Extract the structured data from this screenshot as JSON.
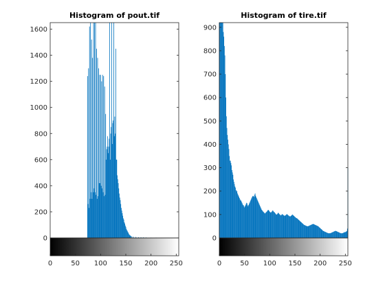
{
  "chart_data": [
    {
      "type": "bar",
      "title": "Histogram of pout.tif",
      "xlabel": "",
      "ylabel": "",
      "xlim": [
        0,
        255
      ],
      "ylim": [
        0,
        1650
      ],
      "xticks": [
        0,
        50,
        100,
        150,
        200,
        250
      ],
      "yticks": [
        0,
        200,
        400,
        600,
        800,
        1000,
        1200,
        1400,
        1600
      ],
      "bar_color": "#0072BD",
      "colorbar": "grayscale 0-255",
      "bins": [
        [
          74,
          1240
        ],
        [
          75,
          260
        ],
        [
          76,
          1300
        ],
        [
          77,
          230
        ],
        [
          78,
          1620
        ],
        [
          79,
          300
        ],
        [
          80,
          1650
        ],
        [
          81,
          350
        ],
        [
          82,
          1520
        ],
        [
          83,
          300
        ],
        [
          84,
          1380
        ],
        [
          85,
          350
        ],
        [
          86,
          1650
        ],
        [
          87,
          380
        ],
        [
          88,
          1650
        ],
        [
          89,
          350
        ],
        [
          90,
          1650
        ],
        [
          91,
          330
        ],
        [
          92,
          1450
        ],
        [
          93,
          300
        ],
        [
          94,
          1380
        ],
        [
          95,
          320
        ],
        [
          96,
          1300
        ],
        [
          97,
          420
        ],
        [
          98,
          1250
        ],
        [
          99,
          420
        ],
        [
          100,
          1250
        ],
        [
          101,
          400
        ],
        [
          102,
          1200
        ],
        [
          103,
          380
        ],
        [
          104,
          1250
        ],
        [
          105,
          350
        ],
        [
          106,
          1240
        ],
        [
          107,
          320
        ],
        [
          108,
          1160
        ],
        [
          109,
          330
        ],
        [
          110,
          950
        ],
        [
          111,
          600
        ],
        [
          112,
          680
        ],
        [
          113,
          700
        ],
        [
          114,
          780
        ],
        [
          115,
          650
        ],
        [
          116,
          700
        ],
        [
          117,
          760
        ],
        [
          118,
          1650
        ],
        [
          119,
          600
        ],
        [
          120,
          800
        ],
        [
          121,
          850
        ],
        [
          122,
          1650
        ],
        [
          123,
          720
        ],
        [
          124,
          880
        ],
        [
          125,
          900
        ],
        [
          126,
          1650
        ],
        [
          127,
          780
        ],
        [
          128,
          930
        ],
        [
          129,
          800
        ],
        [
          130,
          1450
        ],
        [
          131,
          600
        ],
        [
          132,
          600
        ],
        [
          133,
          480
        ],
        [
          134,
          450
        ],
        [
          135,
          420
        ],
        [
          136,
          380
        ],
        [
          137,
          340
        ],
        [
          138,
          310
        ],
        [
          139,
          290
        ],
        [
          140,
          260
        ],
        [
          141,
          230
        ],
        [
          142,
          210
        ],
        [
          143,
          190
        ],
        [
          144,
          170
        ],
        [
          145,
          150
        ],
        [
          146,
          140
        ],
        [
          147,
          120
        ],
        [
          148,
          110
        ],
        [
          149,
          95
        ],
        [
          150,
          85
        ],
        [
          151,
          70
        ],
        [
          152,
          60
        ],
        [
          153,
          55
        ],
        [
          154,
          45
        ],
        [
          155,
          40
        ],
        [
          156,
          30
        ],
        [
          157,
          25
        ],
        [
          158,
          20
        ],
        [
          159,
          18
        ],
        [
          160,
          15
        ],
        [
          162,
          12
        ],
        [
          165,
          10
        ],
        [
          170,
          8
        ],
        [
          175,
          6
        ],
        [
          180,
          5
        ],
        [
          185,
          5
        ],
        [
          190,
          4
        ],
        [
          200,
          3
        ],
        [
          210,
          3
        ],
        [
          220,
          2
        ],
        [
          230,
          2
        ],
        [
          240,
          2
        ]
      ]
    },
    {
      "type": "bar",
      "title": "Histogram of tire.tif",
      "xlabel": "",
      "ylabel": "",
      "xlim": [
        0,
        255
      ],
      "ylim": [
        0,
        920
      ],
      "xticks": [
        0,
        50,
        100,
        150,
        200,
        250
      ],
      "yticks": [
        0,
        100,
        200,
        300,
        400,
        500,
        600,
        700,
        800,
        900
      ],
      "bar_color": "#0072BD",
      "colorbar": "grayscale 0-255",
      "bins": [
        [
          0,
          920
        ],
        [
          1,
          920
        ],
        [
          2,
          920
        ],
        [
          3,
          920
        ],
        [
          4,
          920
        ],
        [
          5,
          920
        ],
        [
          6,
          920
        ],
        [
          7,
          920
        ],
        [
          8,
          880
        ],
        [
          9,
          860
        ],
        [
          10,
          820
        ],
        [
          11,
          780
        ],
        [
          12,
          700
        ],
        [
          13,
          600
        ],
        [
          14,
          520
        ],
        [
          15,
          470
        ],
        [
          16,
          440
        ],
        [
          17,
          420
        ],
        [
          18,
          400
        ],
        [
          19,
          380
        ],
        [
          20,
          350
        ],
        [
          21,
          330
        ],
        [
          22,
          330
        ],
        [
          23,
          320
        ],
        [
          24,
          310
        ],
        [
          25,
          290
        ],
        [
          26,
          280
        ],
        [
          27,
          270
        ],
        [
          28,
          250
        ],
        [
          29,
          240
        ],
        [
          30,
          230
        ],
        [
          31,
          220
        ],
        [
          32,
          215
        ],
        [
          33,
          205
        ],
        [
          34,
          200
        ],
        [
          35,
          200
        ],
        [
          36,
          190
        ],
        [
          37,
          185
        ],
        [
          38,
          180
        ],
        [
          39,
          175
        ],
        [
          40,
          170
        ],
        [
          41,
          165
        ],
        [
          42,
          160
        ],
        [
          43,
          160
        ],
        [
          44,
          155
        ],
        [
          45,
          150
        ],
        [
          46,
          145
        ],
        [
          47,
          140
        ],
        [
          48,
          140
        ],
        [
          49,
          135
        ],
        [
          50,
          130
        ],
        [
          51,
          135
        ],
        [
          52,
          140
        ],
        [
          53,
          145
        ],
        [
          54,
          150
        ],
        [
          55,
          148
        ],
        [
          56,
          140
        ],
        [
          57,
          135
        ],
        [
          58,
          140
        ],
        [
          59,
          145
        ],
        [
          60,
          150
        ],
        [
          61,
          155
        ],
        [
          62,
          160
        ],
        [
          63,
          165
        ],
        [
          64,
          170
        ],
        [
          65,
          175
        ],
        [
          66,
          178
        ],
        [
          67,
          180
        ],
        [
          68,
          178
        ],
        [
          69,
          175
        ],
        [
          70,
          185
        ],
        [
          71,
          190
        ],
        [
          72,
          180
        ],
        [
          73,
          175
        ],
        [
          74,
          170
        ],
        [
          75,
          165
        ],
        [
          76,
          160
        ],
        [
          77,
          155
        ],
        [
          78,
          150
        ],
        [
          79,
          145
        ],
        [
          80,
          140
        ],
        [
          81,
          135
        ],
        [
          82,
          130
        ],
        [
          83,
          125
        ],
        [
          84,
          120
        ],
        [
          85,
          118
        ],
        [
          86,
          115
        ],
        [
          87,
          112
        ],
        [
          88,
          110
        ],
        [
          89,
          108
        ],
        [
          90,
          105
        ],
        [
          91,
          105
        ],
        [
          92,
          108
        ],
        [
          93,
          110
        ],
        [
          94,
          112
        ],
        [
          95,
          115
        ],
        [
          96,
          118
        ],
        [
          97,
          120
        ],
        [
          98,
          118
        ],
        [
          99,
          115
        ],
        [
          100,
          112
        ],
        [
          101,
          110
        ],
        [
          102,
          108
        ],
        [
          103,
          110
        ],
        [
          104,
          112
        ],
        [
          105,
          115
        ],
        [
          106,
          118
        ],
        [
          107,
          115
        ],
        [
          108,
          112
        ],
        [
          109,
          110
        ],
        [
          110,
          108
        ],
        [
          111,
          105
        ],
        [
          112,
          102
        ],
        [
          113,
          100
        ],
        [
          114,
          100
        ],
        [
          115,
          102
        ],
        [
          116,
          105
        ],
        [
          117,
          108
        ],
        [
          118,
          105
        ],
        [
          119,
          102
        ],
        [
          120,
          100
        ],
        [
          121,
          98
        ],
        [
          122,
          96
        ],
        [
          123,
          98
        ],
        [
          124,
          100
        ],
        [
          125,
          102
        ],
        [
          126,
          100
        ],
        [
          127,
          98
        ],
        [
          128,
          96
        ],
        [
          129,
          95
        ],
        [
          130,
          95
        ],
        [
          131,
          96
        ],
        [
          132,
          98
        ],
        [
          133,
          100
        ],
        [
          134,
          102
        ],
        [
          135,
          100
        ],
        [
          136,
          98
        ],
        [
          137,
          96
        ],
        [
          138,
          95
        ],
        [
          139,
          93
        ],
        [
          140,
          92
        ],
        [
          141,
          92
        ],
        [
          142,
          94
        ],
        [
          143,
          96
        ],
        [
          144,
          98
        ],
        [
          145,
          100
        ],
        [
          146,
          98
        ],
        [
          147,
          96
        ],
        [
          148,
          94
        ],
        [
          149,
          92
        ],
        [
          150,
          90
        ],
        [
          151,
          88
        ],
        [
          152,
          86
        ],
        [
          153,
          85
        ],
        [
          154,
          84
        ],
        [
          155,
          82
        ],
        [
          156,
          80
        ],
        [
          157,
          78
        ],
        [
          158,
          76
        ],
        [
          159,
          74
        ],
        [
          160,
          72
        ],
        [
          161,
          70
        ],
        [
          162,
          68
        ],
        [
          163,
          66
        ],
        [
          164,
          64
        ],
        [
          165,
          62
        ],
        [
          166,
          60
        ],
        [
          167,
          58
        ],
        [
          168,
          56
        ],
        [
          169,
          55
        ],
        [
          170,
          54
        ],
        [
          171,
          53
        ],
        [
          172,
          52
        ],
        [
          173,
          51
        ],
        [
          174,
          50
        ],
        [
          175,
          50
        ],
        [
          176,
          50
        ],
        [
          177,
          51
        ],
        [
          178,
          52
        ],
        [
          179,
          53
        ],
        [
          180,
          54
        ],
        [
          181,
          55
        ],
        [
          182,
          56
        ],
        [
          183,
          57
        ],
        [
          184,
          58
        ],
        [
          185,
          59
        ],
        [
          186,
          60
        ],
        [
          187,
          59
        ],
        [
          188,
          58
        ],
        [
          189,
          57
        ],
        [
          190,
          56
        ],
        [
          191,
          55
        ],
        [
          192,
          54
        ],
        [
          193,
          53
        ],
        [
          194,
          52
        ],
        [
          195,
          51
        ],
        [
          196,
          50
        ],
        [
          197,
          48
        ],
        [
          198,
          46
        ],
        [
          199,
          44
        ],
        [
          200,
          42
        ],
        [
          201,
          40
        ],
        [
          202,
          38
        ],
        [
          203,
          36
        ],
        [
          204,
          34
        ],
        [
          205,
          32
        ],
        [
          206,
          30
        ],
        [
          207,
          29
        ],
        [
          208,
          28
        ],
        [
          209,
          27
        ],
        [
          210,
          26
        ],
        [
          211,
          25
        ],
        [
          212,
          24
        ],
        [
          213,
          23
        ],
        [
          214,
          22
        ],
        [
          215,
          21
        ],
        [
          216,
          20
        ],
        [
          217,
          20
        ],
        [
          218,
          20
        ],
        [
          219,
          20
        ],
        [
          220,
          20
        ],
        [
          221,
          21
        ],
        [
          222,
          22
        ],
        [
          223,
          23
        ],
        [
          224,
          24
        ],
        [
          225,
          25
        ],
        [
          226,
          26
        ],
        [
          227,
          27
        ],
        [
          228,
          28
        ],
        [
          229,
          29
        ],
        [
          230,
          30
        ],
        [
          231,
          30
        ],
        [
          232,
          29
        ],
        [
          233,
          28
        ],
        [
          234,
          27
        ],
        [
          235,
          26
        ],
        [
          236,
          25
        ],
        [
          237,
          24
        ],
        [
          238,
          23
        ],
        [
          239,
          22
        ],
        [
          240,
          21
        ],
        [
          241,
          20
        ],
        [
          242,
          20
        ],
        [
          243,
          20
        ],
        [
          244,
          20
        ],
        [
          245,
          21
        ],
        [
          246,
          22
        ],
        [
          247,
          23
        ],
        [
          248,
          24
        ],
        [
          249,
          25
        ],
        [
          250,
          25
        ],
        [
          251,
          26
        ],
        [
          252,
          28
        ],
        [
          253,
          30
        ],
        [
          254,
          40
        ],
        [
          255,
          300
        ]
      ]
    }
  ]
}
